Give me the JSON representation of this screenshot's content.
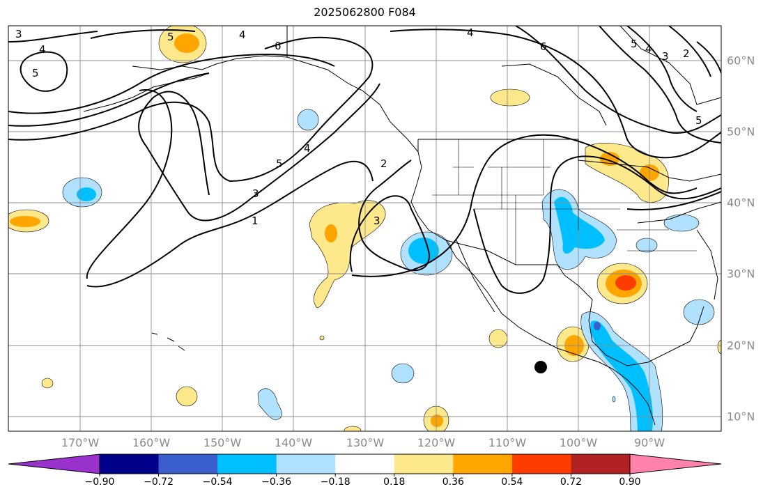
{
  "title": "2025062800 F084",
  "lon_labels": [
    "170°W",
    "160°W",
    "150°W",
    "140°W",
    "130°W",
    "120°W",
    "110°W",
    "100°W",
    "90°W"
  ],
  "lat_labels": [
    "60°N",
    "50°N",
    "40°N",
    "30°N",
    "20°N",
    "10°N"
  ],
  "colorbar": {
    "tick_labels": [
      "−0.90",
      "−0.72",
      "−0.54",
      "−0.36",
      "−0.18",
      "0.18",
      "0.36",
      "0.54",
      "0.72",
      "0.90"
    ],
    "colors": [
      "#9932cc",
      "#00008b",
      "#3a5fcd",
      "#00bfff",
      "#b0e2ff",
      "#ffffff",
      "#fde98b",
      "#ffa500",
      "#ff3c00",
      "#b22222",
      "#ff82ab"
    ]
  },
  "contour_labels": [
    "3",
    "4",
    "5",
    "5",
    "4",
    "6",
    "4",
    "6",
    "5",
    "4",
    "3",
    "2",
    "5",
    "4",
    "5",
    "3",
    "1",
    "2",
    "3"
  ],
  "map": {
    "lon_range": [
      -180,
      -80
    ],
    "lat_range": [
      8,
      65
    ],
    "grid": true,
    "marker": {
      "lon": -105,
      "lat": 17
    }
  }
}
